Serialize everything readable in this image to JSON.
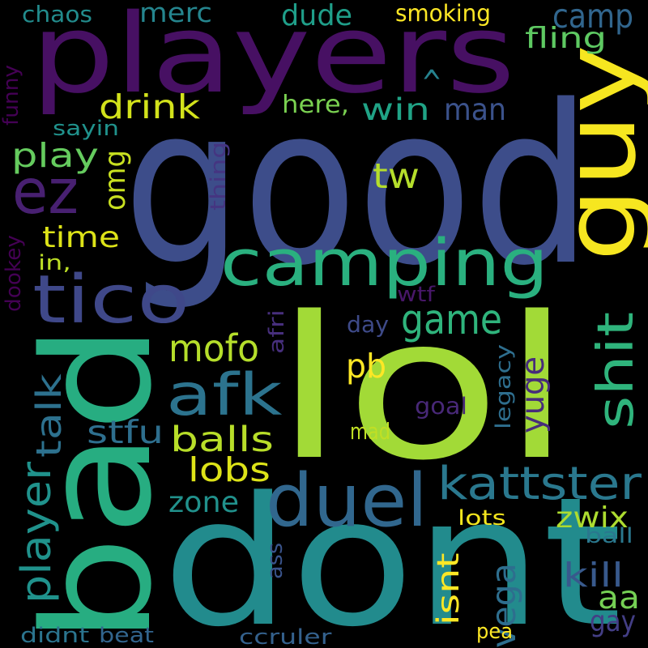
{
  "words": [
    {
      "text": "lol",
      "color": "#a2da37"
    },
    {
      "text": "good",
      "color": "#3d4d8a"
    },
    {
      "text": "dont",
      "color": "#228b8d"
    },
    {
      "text": "bad",
      "color": "#27ad81"
    },
    {
      "text": "players",
      "color": "#471063"
    },
    {
      "text": "guy",
      "color": "#f6e620"
    },
    {
      "text": "camping",
      "color": "#2ab07f"
    },
    {
      "text": "tico",
      "color": "#3f4889"
    },
    {
      "text": "duel",
      "color": "#31678e"
    },
    {
      "text": "shit",
      "color": "#2fb47c"
    },
    {
      "text": "afk",
      "color": "#2c738e"
    },
    {
      "text": "ez",
      "color": "#482071"
    },
    {
      "text": "kattster",
      "color": "#2a788e"
    },
    {
      "text": "game",
      "color": "#2fb47c"
    },
    {
      "text": "player",
      "color": "#20928c"
    },
    {
      "text": "talk",
      "color": "#2d718e"
    },
    {
      "text": "mofo",
      "color": "#b5de2b"
    },
    {
      "text": "camp",
      "color": "#31668e"
    },
    {
      "text": "merc",
      "color": "#25858e"
    },
    {
      "text": "drink",
      "color": "#d2e21b"
    },
    {
      "text": "play",
      "color": "#65cb5e"
    },
    {
      "text": "balls",
      "color": "#b8de29"
    },
    {
      "text": "tw",
      "color": "#b5de2b"
    },
    {
      "text": "win",
      "color": "#20a386"
    },
    {
      "text": "man",
      "color": "#3b528b"
    },
    {
      "text": "kill",
      "color": "#38598c"
    },
    {
      "text": "lobs",
      "color": "#dde318"
    },
    {
      "text": "stfu",
      "color": "#2e6f8e"
    },
    {
      "text": "vega",
      "color": "#2e6e8e"
    },
    {
      "text": "yuge",
      "color": "#472c7a"
    },
    {
      "text": "fling",
      "color": "#5ec962"
    },
    {
      "text": "time",
      "color": "#dde318"
    },
    {
      "text": "zwix",
      "color": "#addc30"
    },
    {
      "text": "zone",
      "color": "#21918c"
    },
    {
      "text": "aa",
      "color": "#75d054"
    },
    {
      "text": "isnt",
      "color": "#fde725"
    },
    {
      "text": "pb",
      "color": "#fde725"
    },
    {
      "text": "dude",
      "color": "#1f9e89"
    },
    {
      "text": "omg",
      "color": "#c8e020"
    },
    {
      "text": "gay",
      "color": "#433e85"
    },
    {
      "text": "smoking",
      "color": "#fde725"
    },
    {
      "text": "lots",
      "color": "#f4e61e"
    },
    {
      "text": "funny",
      "color": "#440154"
    },
    {
      "text": "chaos",
      "color": "#228c8d"
    },
    {
      "text": "here,",
      "color": "#7ad151"
    },
    {
      "text": "^",
      "color": "#26828e"
    },
    {
      "text": "sayin",
      "color": "#20928c"
    },
    {
      "text": "thing",
      "color": "#453581"
    },
    {
      "text": "in,",
      "color": "#bddf26"
    },
    {
      "text": "dookey",
      "color": "#440154"
    },
    {
      "text": "wtf",
      "color": "#481769"
    },
    {
      "text": "afri",
      "color": "#472f7d"
    },
    {
      "text": "day",
      "color": "#3e4a89"
    },
    {
      "text": "legacy",
      "color": "#2e6e8e"
    },
    {
      "text": "goal",
      "color": "#482878"
    },
    {
      "text": "mad",
      "color": "#c0df25"
    },
    {
      "text": "ass",
      "color": "#3a548c"
    },
    {
      "text": "ball",
      "color": "#2a788e"
    },
    {
      "text": "pea",
      "color": "#fde725"
    },
    {
      "text": "didnt",
      "color": "#2b748e"
    },
    {
      "text": "beat",
      "color": "#32658e"
    },
    {
      "text": "ccruler",
      "color": "#34618d"
    }
  ]
}
